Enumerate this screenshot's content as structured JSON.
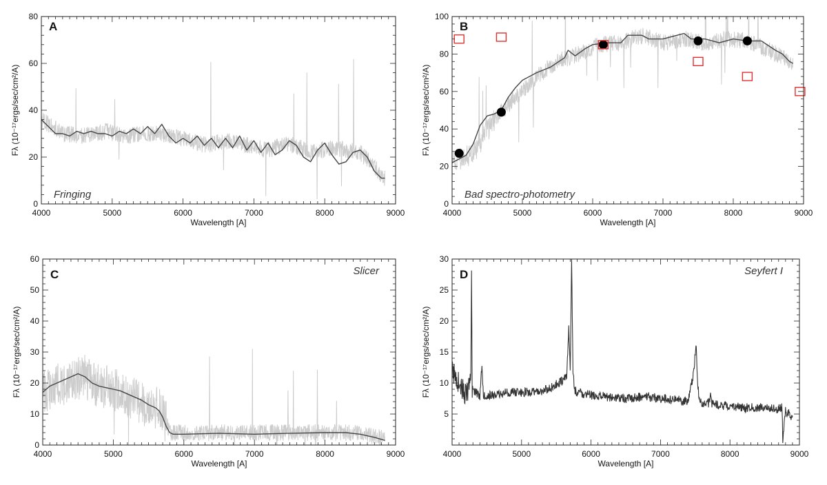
{
  "chart_data": [
    {
      "panel": "A",
      "type": "line",
      "annotation": "Fringing",
      "xlabel": "Wavelength [A]",
      "ylabel": "Fλ (10⁻¹⁷ergs/sec/cm²/A)",
      "xlim": [
        4000,
        9000
      ],
      "ylim": [
        0,
        80
      ],
      "xticks": [
        4000,
        5000,
        6000,
        7000,
        8000,
        9000
      ],
      "yticks": [
        0,
        20,
        40,
        60,
        80
      ],
      "series": [
        {
          "name": "observed spectrum (noisy)",
          "color": "#cccccc",
          "style": "noisy",
          "x": [
            4000,
            4300,
            4600,
            4900,
            5200,
            5500,
            5700,
            6000,
            6300,
            6600,
            6900,
            7200,
            7500,
            7800,
            8100,
            8500,
            8850
          ],
          "y": [
            36,
            30,
            29,
            31,
            29,
            30,
            30,
            28,
            25,
            27,
            25,
            23,
            26,
            22,
            24,
            22,
            11
          ]
        },
        {
          "name": "smoothed",
          "color": "#444444",
          "style": "line",
          "x": [
            4000,
            4100,
            4200,
            4300,
            4400,
            4500,
            4600,
            4700,
            4800,
            4900,
            5000,
            5100,
            5200,
            5300,
            5400,
            5500,
            5600,
            5700,
            5800,
            5900,
            6000,
            6100,
            6200,
            6300,
            6400,
            6500,
            6600,
            6700,
            6800,
            6900,
            7000,
            7100,
            7200,
            7300,
            7400,
            7500,
            7600,
            7700,
            7800,
            7900,
            8000,
            8100,
            8200,
            8300,
            8400,
            8500,
            8600,
            8700,
            8800,
            8850
          ],
          "y": [
            36,
            33,
            30,
            30,
            29,
            31,
            30,
            31,
            30,
            30,
            29,
            31,
            30,
            32,
            30,
            33,
            30,
            34,
            29,
            26,
            28,
            26,
            29,
            25,
            28,
            24,
            28,
            24,
            29,
            23,
            27,
            22,
            26,
            21,
            23,
            27,
            25,
            20,
            18,
            23,
            26,
            21,
            17,
            18,
            22,
            23,
            20,
            14,
            11,
            11
          ]
        }
      ]
    },
    {
      "panel": "B",
      "type": "line",
      "annotation": "Bad spectro-photometry",
      "xlabel": "Wavelength [A]",
      "ylabel": "Fλ (10⁻¹⁷ergs/sec/cm²/A)",
      "xlim": [
        4000,
        9000
      ],
      "ylim": [
        0,
        100
      ],
      "xticks": [
        4000,
        5000,
        6000,
        7000,
        8000,
        9000
      ],
      "yticks": [
        0,
        20,
        40,
        60,
        80,
        100
      ],
      "series": [
        {
          "name": "observed spectrum (noisy)",
          "color": "#cccccc",
          "style": "noisy",
          "x": [
            4000,
            4300,
            4600,
            4900,
            5200,
            5500,
            5800,
            6100,
            6400,
            6700,
            7000,
            7300,
            7600,
            7900,
            8200,
            8500,
            8850
          ],
          "y": [
            22,
            27,
            45,
            57,
            68,
            76,
            80,
            85,
            86,
            90,
            86,
            88,
            86,
            88,
            87,
            82,
            75
          ]
        },
        {
          "name": "smoothed",
          "color": "#444444",
          "style": "line",
          "x": [
            4000,
            4100,
            4200,
            4300,
            4400,
            4500,
            4600,
            4700,
            4800,
            4900,
            5000,
            5200,
            5400,
            5600,
            5650,
            5750,
            5900,
            6000,
            6200,
            6400,
            6500,
            6700,
            6800,
            7000,
            7200,
            7300,
            7400,
            7600,
            7800,
            8000,
            8200,
            8400,
            8600,
            8700,
            8800,
            8850
          ],
          "y": [
            22,
            24,
            26,
            32,
            42,
            47,
            48,
            50,
            57,
            62,
            66,
            70,
            73,
            78,
            82,
            79,
            83,
            85,
            86,
            86,
            90,
            90,
            88,
            88,
            90,
            91,
            88,
            88,
            86,
            88,
            87,
            87,
            82,
            80,
            76,
            75
          ]
        },
        {
          "name": "photometry (black dots)",
          "color": "#000000",
          "style": "dots",
          "x": [
            4100,
            4700,
            6150,
            7500,
            8200
          ],
          "y": [
            27,
            49,
            85,
            87,
            87
          ]
        },
        {
          "name": "photometry (red squares)",
          "color": "#e03030",
          "style": "squares",
          "x": [
            4100,
            4700,
            6150,
            7500,
            8200,
            8950
          ],
          "y": [
            88,
            89,
            85,
            76,
            68,
            60
          ]
        }
      ]
    },
    {
      "panel": "C",
      "type": "line",
      "annotation": "Slicer",
      "xlabel": "Wavelength [A]",
      "ylabel": "Fλ (10⁻¹⁷ergs/sec/cm²/A)",
      "xlim": [
        4000,
        9000
      ],
      "ylim": [
        0,
        60
      ],
      "xticks": [
        4000,
        5000,
        6000,
        7000,
        8000,
        9000
      ],
      "yticks": [
        0,
        10,
        20,
        30,
        40,
        50,
        60
      ],
      "series": [
        {
          "name": "observed spectrum (noisy)",
          "color": "#cccccc",
          "style": "noisy",
          "x": [
            4000,
            4200,
            4400,
            4600,
            4800,
            5000,
            5200,
            5400,
            5600,
            5700,
            5800,
            6000,
            6500,
            7000,
            7500,
            8000,
            8500,
            8850
          ],
          "y": [
            17,
            19,
            21,
            22,
            19,
            18,
            16,
            13,
            12,
            10,
            4,
            4,
            4,
            4,
            4,
            4,
            4,
            2
          ]
        },
        {
          "name": "smoothed",
          "color": "#444444",
          "style": "line",
          "x": [
            4000,
            4100,
            4200,
            4300,
            4400,
            4500,
            4600,
            4700,
            4800,
            4900,
            5000,
            5100,
            5200,
            5300,
            5400,
            5500,
            5600,
            5650,
            5700,
            5750,
            5800,
            5850,
            6000,
            6500,
            7000,
            7500,
            8000,
            8300,
            8500,
            8700,
            8850
          ],
          "y": [
            17,
            19,
            20,
            21,
            22,
            23,
            22,
            20,
            19,
            18.5,
            18,
            17.5,
            16.5,
            15.5,
            14.5,
            13,
            12,
            11,
            9,
            6,
            4,
            3.5,
            3.5,
            3.8,
            3.5,
            3.8,
            4,
            4,
            3.5,
            2.5,
            1.5
          ]
        }
      ]
    },
    {
      "panel": "D",
      "type": "line",
      "annotation": "Seyfert I",
      "xlabel": "Wavelength [A]",
      "ylabel": "Fλ (10⁻¹⁷ergs/sec/cm²/A)",
      "xlim": [
        4000,
        9000
      ],
      "ylim": [
        0,
        30
      ],
      "xticks": [
        4000,
        5000,
        6000,
        7000,
        8000,
        9000
      ],
      "yticks": [
        5,
        10,
        15,
        20,
        25,
        30
      ],
      "series": [
        {
          "name": "spectrum",
          "color": "#333333",
          "style": "noisy-dark",
          "x": [
            4000,
            4050,
            4200,
            4270,
            4280,
            4290,
            4400,
            4430,
            4450,
            4600,
            4800,
            5000,
            5200,
            5400,
            5600,
            5650,
            5680,
            5700,
            5720,
            5740,
            5760,
            5800,
            6000,
            6200,
            6500,
            6800,
            7000,
            7200,
            7400,
            7480,
            7510,
            7530,
            7560,
            7600,
            7700,
            7720,
            7740,
            7800,
            8000,
            8200,
            8400,
            8600,
            8700,
            8750,
            8760,
            8800,
            8900
          ],
          "y": [
            12,
            11,
            8,
            10,
            28,
            9,
            8,
            13,
            8,
            8,
            8.5,
            8.5,
            8.5,
            9,
            10.5,
            11,
            19,
            12,
            30,
            12,
            9,
            8.5,
            8,
            7.8,
            7.5,
            7.8,
            7.5,
            7.3,
            7,
            12,
            16.5,
            11,
            7,
            6.8,
            6.8,
            8,
            6.8,
            6.5,
            6.3,
            6,
            6,
            6,
            5.8,
            6,
            1,
            5.5,
            4.5
          ]
        }
      ]
    }
  ]
}
